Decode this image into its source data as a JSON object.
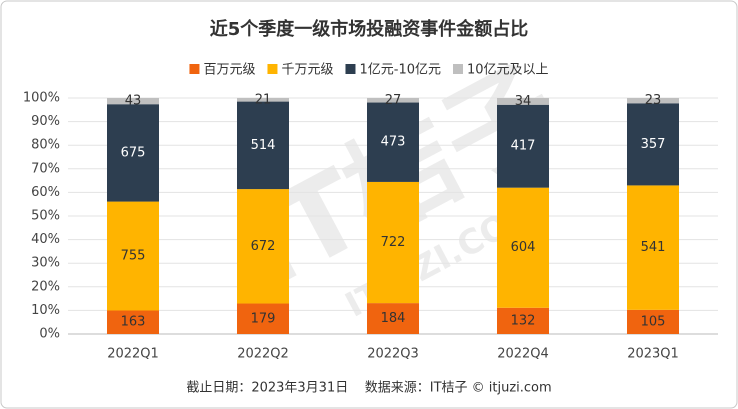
{
  "chart_data": {
    "type": "bar",
    "stacked": "percent",
    "title": "近5个季度一级市场投融资事件金额占比",
    "categories": [
      "2022Q1",
      "2022Q2",
      "2022Q3",
      "2022Q4",
      "2023Q1"
    ],
    "series": [
      {
        "name": "百万元级",
        "color": "#f0640f",
        "values": [
          163,
          179,
          184,
          132,
          105
        ]
      },
      {
        "name": "千万元级",
        "color": "#ffb400",
        "values": [
          755,
          672,
          722,
          604,
          541
        ]
      },
      {
        "name": "1亿元-10亿元",
        "color": "#2d3e50",
        "values": [
          675,
          514,
          473,
          417,
          357
        ]
      },
      {
        "name": "10亿元及以上",
        "color": "#bfbfbf",
        "values": [
          43,
          21,
          27,
          34,
          23
        ]
      }
    ],
    "ylim": [
      0,
      100
    ],
    "yticks": [
      {
        "value": 0,
        "label": "0%"
      },
      {
        "value": 10,
        "label": "10%"
      },
      {
        "value": 20,
        "label": "20%"
      },
      {
        "value": 30,
        "label": "30%"
      },
      {
        "value": 40,
        "label": "40%"
      },
      {
        "value": 50,
        "label": "50%"
      },
      {
        "value": 60,
        "label": "60%"
      },
      {
        "value": 70,
        "label": "70%"
      },
      {
        "value": 80,
        "label": "80%"
      },
      {
        "value": 90,
        "label": "90%"
      },
      {
        "value": 100,
        "label": "100%"
      }
    ],
    "grid": true,
    "legend": "top",
    "footer": "截止日期：2023年3月31日    数据来源：IT桔子 © itjuzi.com",
    "watermark": [
      "IT桔子",
      "ITJUZI.COM"
    ]
  }
}
